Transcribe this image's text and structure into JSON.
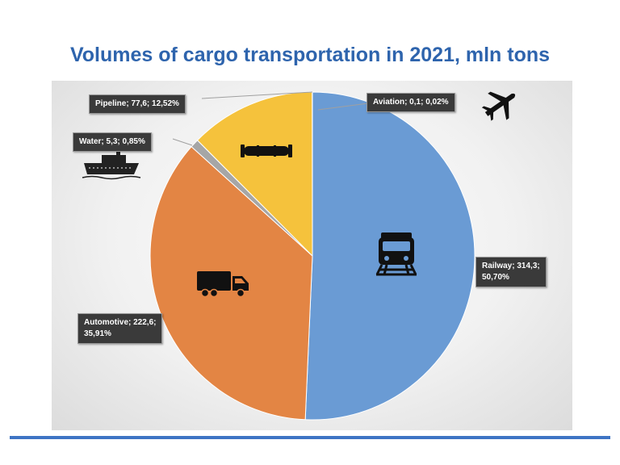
{
  "title": "Volumes of cargo transportation in 2021, mln tons",
  "chart_data": {
    "type": "pie",
    "title": "Volumes of cargo transportation in 2021, mln tons",
    "unit": "mln tons",
    "slices": [
      {
        "name": "Railway",
        "value": 314.3,
        "percent": 50.7,
        "color": "#6a9bd4",
        "icon": "train-icon",
        "label_line1": "Railway; 314,3;",
        "label_line2": "50,70%"
      },
      {
        "name": "Automotive",
        "value": 222.6,
        "percent": 35.91,
        "color": "#e38544",
        "icon": "truck-icon",
        "label_line1": "Automotive; 222,6;",
        "label_line2": "35,91%"
      },
      {
        "name": "Water",
        "value": 5.3,
        "percent": 0.85,
        "color": "#a6a6a6",
        "icon": "ship-icon",
        "label_line1": "Water; 5,3; 0,85%",
        "label_line2": ""
      },
      {
        "name": "Pipeline",
        "value": 77.6,
        "percent": 12.52,
        "color": "#f5c23c",
        "icon": "pipeline-icon",
        "label_line1": "Pipeline; 77,6; 12,52%",
        "label_line2": ""
      },
      {
        "name": "Aviation",
        "value": 0.1,
        "percent": 0.02,
        "color": "#4472c4",
        "icon": "airplane-icon",
        "label_line1": "Aviation; 0,1; 0,02%",
        "label_line2": ""
      }
    ]
  }
}
